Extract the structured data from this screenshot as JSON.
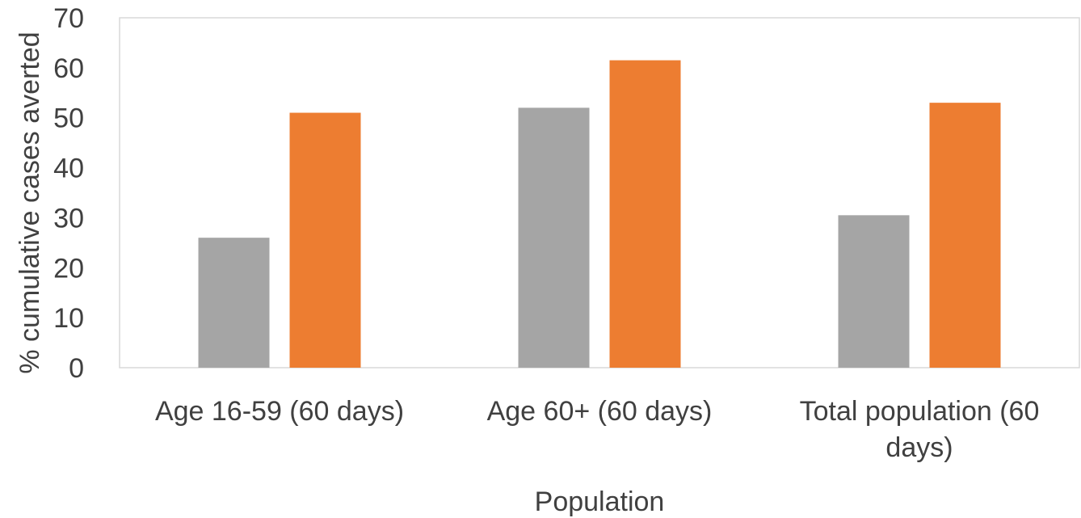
{
  "chart_data": {
    "type": "bar",
    "title": "",
    "xlabel": "Population",
    "ylabel": "% cumulative cases  averted",
    "ylim": [
      0,
      70
    ],
    "yticks": [
      0,
      10,
      20,
      30,
      40,
      50,
      60,
      70
    ],
    "categories": [
      [
        "Age 16-59 (60 days)"
      ],
      [
        "Age 60+ (60 days)"
      ],
      [
        "Total population (60",
        "days)"
      ]
    ],
    "series": [
      {
        "values": [
          26,
          52,
          30.5
        ],
        "color": "#a5a5a5"
      },
      {
        "values": [
          51,
          61.5,
          53
        ],
        "color": "#ed7d31"
      }
    ],
    "grid": false,
    "legend": "none",
    "frame_color": "#d9d9d9"
  }
}
